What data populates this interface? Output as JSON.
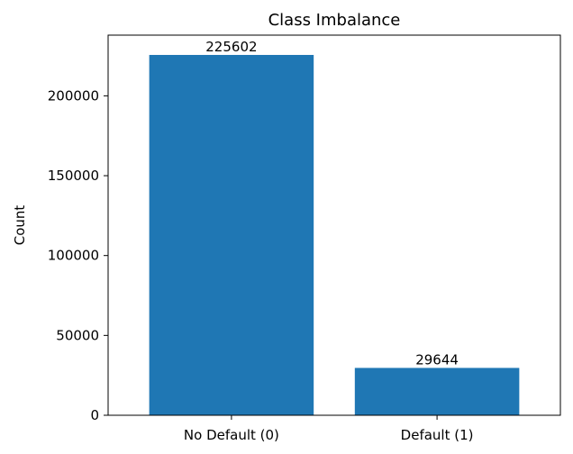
{
  "chart_data": {
    "type": "bar",
    "title": "Class Imbalance",
    "xlabel": "",
    "ylabel": "Count",
    "categories": [
      "No Default (0)",
      "Default (1)"
    ],
    "values": [
      225602,
      29644
    ],
    "data_labels": [
      "225602",
      "29644"
    ],
    "ylim": [
      0,
      238000
    ],
    "yticks": [
      0,
      50000,
      100000,
      150000,
      200000
    ],
    "ytick_labels": [
      "0",
      "50000",
      "100000",
      "150000",
      "200000"
    ],
    "bar_color": "#1f77b4",
    "grid": false,
    "legend": "none"
  }
}
